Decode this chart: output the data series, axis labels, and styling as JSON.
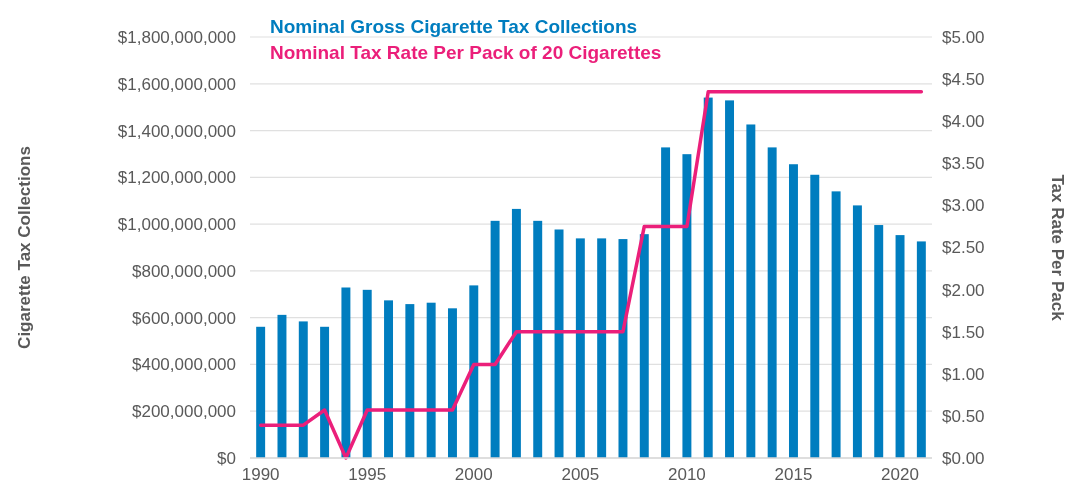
{
  "chart_data": {
    "type": "bar",
    "x": [
      1990,
      1991,
      1992,
      1993,
      1994,
      1995,
      1996,
      1997,
      1998,
      1999,
      2000,
      2001,
      2002,
      2003,
      2004,
      2005,
      2006,
      2007,
      2008,
      2009,
      2010,
      2011,
      2012,
      2013,
      2014,
      2015,
      2016,
      2017,
      2018,
      2019,
      2020,
      2021
    ],
    "series": [
      {
        "name": "Nominal Gross Cigarette Tax Collections",
        "color": "#007dbf",
        "values": [
          561000000,
          612000000,
          584000000,
          561000000,
          729000000,
          719000000,
          674000000,
          658000000,
          664000000,
          640000000,
          738000000,
          1014000000,
          1065000000,
          1014000000,
          977000000,
          939000000,
          939000000,
          936000000,
          957000000,
          1328000000,
          1299000000,
          1541000000,
          1529000000,
          1426000000,
          1328000000,
          1256000000,
          1211000000,
          1140000000,
          1080000000,
          996000000,
          953000000,
          926000000
        ]
      },
      {
        "name": "Nominal Tax Rate Per Pack of 20 Cigarettes",
        "type": "line",
        "axis": "y2",
        "color": "#eb1f7a",
        "values": [
          0.39,
          0.39,
          0.39,
          0.57,
          0,
          0.57,
          0.57,
          0.57,
          0.57,
          0.57,
          1.11,
          1.11,
          1.5,
          1.5,
          1.5,
          1.5,
          1.5,
          1.5,
          2.75,
          2.75,
          2.75,
          4.35,
          4.35,
          4.35,
          4.35,
          4.35,
          4.35,
          4.35,
          4.35,
          4.35,
          4.35,
          4.35
        ]
      }
    ],
    "xlim": [
      1989.5,
      2021.5
    ],
    "xticks": [
      1990,
      1995,
      2000,
      2005,
      2010,
      2015,
      2020
    ],
    "ylim": [
      0,
      1800000000
    ],
    "yticks": [
      {
        "value": 0,
        "label": "$0"
      },
      {
        "value": 200000000,
        "label": "$200,000,000"
      },
      {
        "value": 400000000,
        "label": "$400,000,000"
      },
      {
        "value": 600000000,
        "label": "$600,000,000"
      },
      {
        "value": 800000000,
        "label": "$800,000,000"
      },
      {
        "value": 1000000000,
        "label": "$1,000,000,000"
      },
      {
        "value": 1200000000,
        "label": "$1,200,000,000"
      },
      {
        "value": 1400000000,
        "label": "$1,400,000,000"
      },
      {
        "value": 1600000000,
        "label": "$1,600,000,000"
      },
      {
        "value": 1800000000,
        "label": "$1,800,000,000"
      }
    ],
    "y2lim": [
      0,
      5
    ],
    "y2ticks": [
      {
        "value": 0,
        "label": "$0.00"
      },
      {
        "value": 0.5,
        "label": "$0.50"
      },
      {
        "value": 1,
        "label": "$1.00"
      },
      {
        "value": 1.5,
        "label": "$1.50"
      },
      {
        "value": 2,
        "label": "$2.00"
      },
      {
        "value": 2.5,
        "label": "$2.50"
      },
      {
        "value": 3,
        "label": "$3.00"
      },
      {
        "value": 3.5,
        "label": "$3.50"
      },
      {
        "value": 4,
        "label": "$4.00"
      },
      {
        "value": 4.5,
        "label": "$4.50"
      },
      {
        "value": 5,
        "label": "$5.00"
      }
    ],
    "ylabel": "Cigarette Tax Collections",
    "y2label": "Tax Rate Per Pack",
    "grid": "y",
    "legend": "top left"
  }
}
